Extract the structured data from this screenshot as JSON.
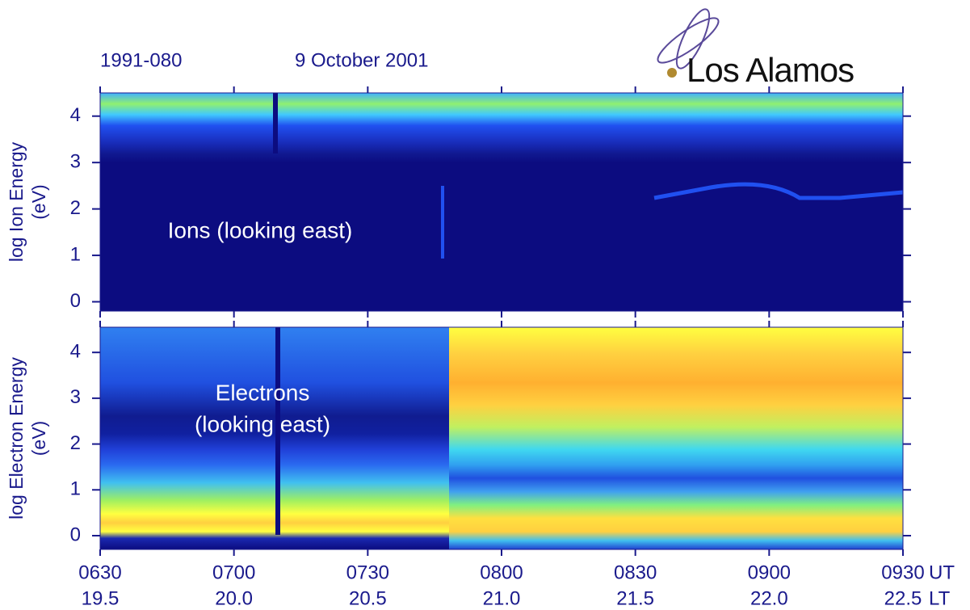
{
  "header": {
    "satellite": "1991-080",
    "date": "9 October 2001",
    "logo": "Los Alamos"
  },
  "time_axis": {
    "xlim": [
      390,
      570
    ],
    "xticks": [
      {
        "value": 390,
        "label": "0630"
      },
      {
        "value": 420,
        "label": "0700"
      },
      {
        "value": 450,
        "label": "0730"
      },
      {
        "value": 480,
        "label": "0800"
      },
      {
        "value": 510,
        "label": "0830"
      },
      {
        "value": 540,
        "label": "0900"
      },
      {
        "value": 570,
        "label": "0930"
      }
    ],
    "xunit": "UT",
    "x2lim": [
      19.5,
      22.5
    ],
    "x2ticks": [
      19.5,
      {
        "value": 20,
        "label": "20.0"
      },
      20.5,
      {
        "value": 21,
        "label": "21.0"
      },
      21.5,
      {
        "value": 22,
        "label": "22.0"
      },
      22.5
    ],
    "x2unit": "LT"
  },
  "chart_data": [
    {
      "type": "spectrogram",
      "species": "ions",
      "ylabel": [
        "log Ion Energy",
        "(eV)"
      ],
      "annotation": [
        "Ions (looking east)"
      ],
      "ylim": [
        -0.2,
        4.5
      ],
      "yticks": [
        0,
        1,
        2,
        3,
        4
      ]
    },
    {
      "type": "spectrogram",
      "species": "electrons",
      "ylabel": [
        "log Electron Energy",
        "(eV)"
      ],
      "annotation": [
        "Electrons",
        "(looking east)"
      ],
      "ylim": [
        -0.3,
        4.55
      ],
      "yticks": [
        0,
        1,
        2,
        3,
        4
      ]
    }
  ]
}
